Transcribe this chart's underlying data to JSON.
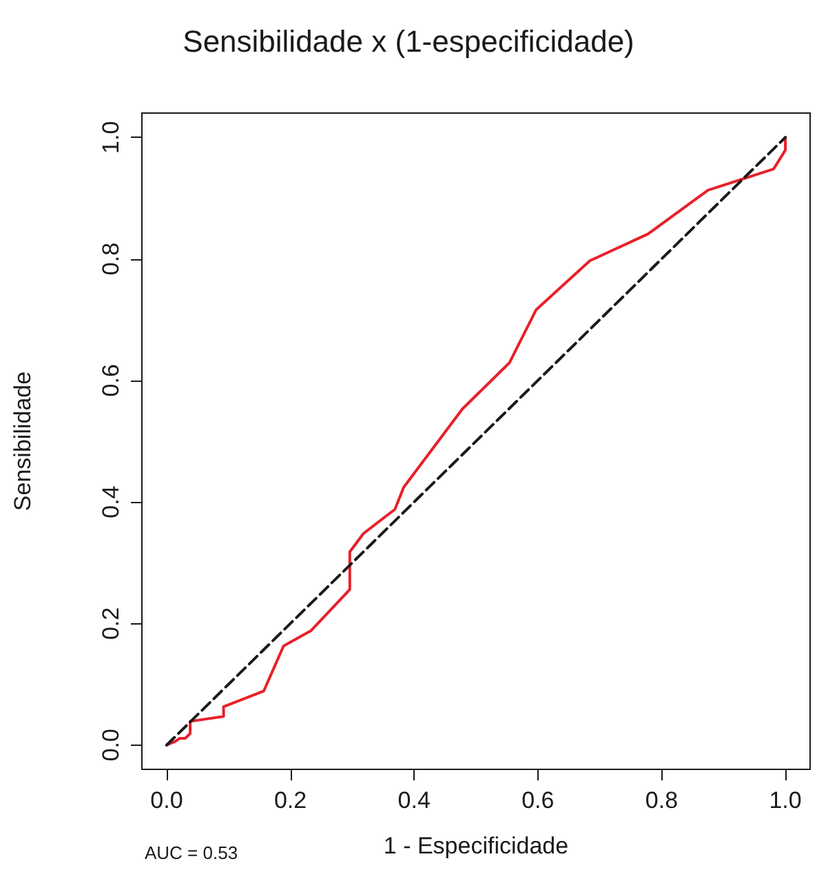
{
  "chart_data": {
    "type": "line",
    "title": "Sensibilidade x (1-especificidade)",
    "xlabel": "1 - Especificidade",
    "ylabel": "Sensibilidade",
    "annotations": [
      "AUC = 0.53"
    ],
    "xlim": [
      -0.04,
      1.04
    ],
    "ylim": [
      -0.04,
      1.04
    ],
    "xticks": [
      {
        "value": 0,
        "label": "0.0"
      },
      {
        "value": 0.2,
        "label": "0.2"
      },
      {
        "value": 0.4,
        "label": "0.4"
      },
      {
        "value": 0.6,
        "label": "0.6"
      },
      {
        "value": 0.8,
        "label": "0.8"
      },
      {
        "value": 1,
        "label": "1.0"
      }
    ],
    "yticks": [
      {
        "value": 0,
        "label": "0.0"
      },
      {
        "value": 0.2,
        "label": "0.2"
      },
      {
        "value": 0.4,
        "label": "0.4"
      },
      {
        "value": 0.6,
        "label": "0.6"
      },
      {
        "value": 0.8,
        "label": "0.8"
      },
      {
        "value": 1,
        "label": "1.0"
      }
    ],
    "marker": "none",
    "series": [
      {
        "color": "#e8202a",
        "line_style": "solid",
        "x": [
          0,
          0.014,
          0.021,
          0.03,
          0.038,
          0.038,
          0.092,
          0.092,
          0.157,
          0.189,
          0.233,
          0.296,
          0.296,
          0.318,
          0.369,
          0.383,
          0.478,
          0.554,
          0.597,
          0.684,
          0.778,
          0.875,
          0.981,
          1,
          1
        ],
        "values": [
          0,
          0.006,
          0.011,
          0.011,
          0.019,
          0.039,
          0.047,
          0.063,
          0.089,
          0.163,
          0.188,
          0.256,
          0.318,
          0.348,
          0.388,
          0.424,
          0.553,
          0.629,
          0.716,
          0.797,
          0.841,
          0.913,
          0.948,
          0.979,
          1
        ]
      },
      {
        "color": "#1a1a1a",
        "line_style": "dashed",
        "x": [
          0,
          1
        ],
        "values": [
          0,
          1
        ]
      }
    ]
  }
}
